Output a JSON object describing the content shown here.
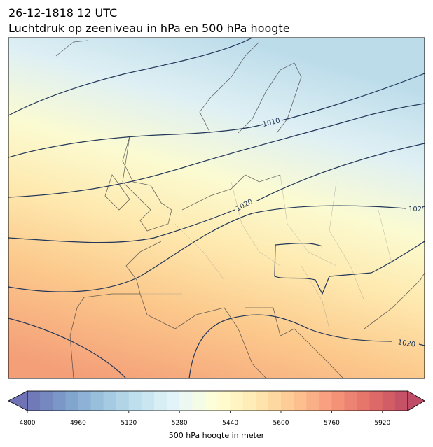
{
  "header": {
    "title": "26-12-1818 12 UTC",
    "subtitle": "Luchtdruk op zeeniveau in hPa en 500 hPa hoogte"
  },
  "isobar_labels": [
    1010,
    1020,
    1025,
    1020
  ],
  "colorbar": {
    "lim": [
      4800,
      6000
    ],
    "step": 40,
    "ticks": [
      4800,
      4960,
      5120,
      5280,
      5440,
      5600,
      5760,
      5920
    ],
    "label": "500 hPa hoogte in meter"
  }
}
